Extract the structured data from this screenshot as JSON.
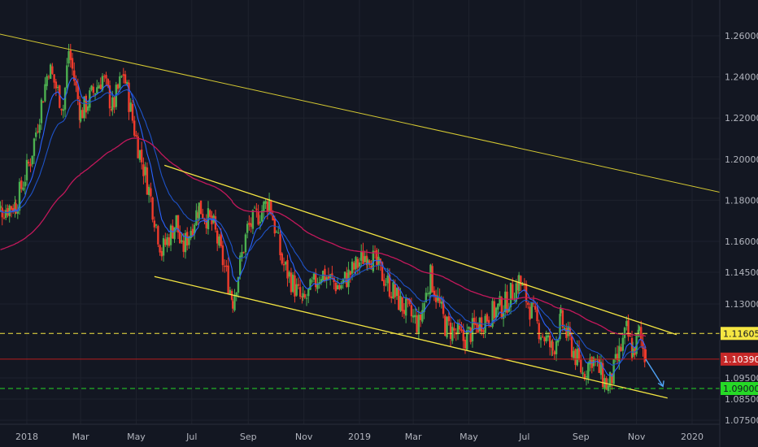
{
  "colors": {
    "background": "#131722",
    "grid": "#1e222d",
    "up": "#4caf50",
    "down": "#ef3b2c",
    "ema_fast": "#2962ff",
    "ema_mid": "#1e53c8",
    "ema_slow": "#c2185b",
    "trendline": "#d4c832",
    "resistance": "#f5e642",
    "support": "#26d926",
    "price": "#b71c1c",
    "arrow": "#4fa3f7",
    "axis_text": "#b2b5be"
  },
  "chart_data": {
    "type": "candlestick",
    "symbol_hint": "EUR/USD daily",
    "x_ticks": [
      "2018",
      "Mar",
      "May",
      "Jul",
      "Sep",
      "Nov",
      "2019",
      "Mar",
      "May",
      "Jul",
      "Sep",
      "Nov",
      "2020"
    ],
    "x_tick_dates": [
      "2018-01-01",
      "2018-03-01",
      "2018-05-01",
      "2018-07-01",
      "2018-09-01",
      "2018-11-01",
      "2019-01-01",
      "2019-03-01",
      "2019-05-01",
      "2019-07-01",
      "2019-09-01",
      "2019-11-01",
      "2020-01-01"
    ],
    "y_ticks": [
      "1.26000",
      "1.24000",
      "1.22000",
      "1.20000",
      "1.18000",
      "1.16000",
      "1.14500",
      "1.13000",
      "1.09500",
      "1.08500",
      "1.07500"
    ],
    "y_tick_values": [
      1.26,
      1.24,
      1.22,
      1.2,
      1.18,
      1.16,
      1.145,
      1.13,
      1.095,
      1.085,
      1.075
    ],
    "price_path": [
      [
        "2017-11-25",
        1.174
      ],
      [
        "2017-12-20",
        1.178
      ],
      [
        "2018-01-05",
        1.2
      ],
      [
        "2018-01-25",
        1.245
      ],
      [
        "2018-02-10",
        1.225
      ],
      [
        "2018-02-16",
        1.253
      ],
      [
        "2018-03-01",
        1.222
      ],
      [
        "2018-03-25",
        1.24
      ],
      [
        "2018-04-05",
        1.225
      ],
      [
        "2018-04-17",
        1.242
      ],
      [
        "2018-05-01",
        1.21
      ],
      [
        "2018-05-15",
        1.185
      ],
      [
        "2018-05-29",
        1.155
      ],
      [
        "2018-06-14",
        1.17
      ],
      [
        "2018-06-20",
        1.155
      ],
      [
        "2018-07-09",
        1.177
      ],
      [
        "2018-07-25",
        1.167
      ],
      [
        "2018-08-15",
        1.132
      ],
      [
        "2018-08-31",
        1.166
      ],
      [
        "2018-09-24",
        1.18
      ],
      [
        "2018-10-08",
        1.15
      ],
      [
        "2018-10-31",
        1.13
      ],
      [
        "2018-11-20",
        1.145
      ],
      [
        "2018-12-10",
        1.138
      ],
      [
        "2019-01-10",
        1.155
      ],
      [
        "2019-02-15",
        1.13
      ],
      [
        "2019-03-07",
        1.12
      ],
      [
        "2019-03-20",
        1.143
      ],
      [
        "2019-04-05",
        1.12
      ],
      [
        "2019-04-25",
        1.113
      ],
      [
        "2019-05-15",
        1.122
      ],
      [
        "2019-06-10",
        1.13
      ],
      [
        "2019-06-25",
        1.141
      ],
      [
        "2019-07-15",
        1.12
      ],
      [
        "2019-08-01",
        1.108
      ],
      [
        "2019-08-10",
        1.122
      ],
      [
        "2019-09-03",
        1.097
      ],
      [
        "2019-09-13",
        1.105
      ],
      [
        "2019-10-01",
        1.09
      ],
      [
        "2019-10-21",
        1.117
      ],
      [
        "2019-10-28",
        1.107
      ],
      [
        "2019-11-04",
        1.116
      ],
      [
        "2019-11-11",
        1.1039
      ]
    ],
    "moving_averages": [
      {
        "period": 20,
        "color": "#2962ff"
      },
      {
        "period": 50,
        "color": "#1e53c8"
      },
      {
        "period": 200,
        "color": "#c2185b"
      }
    ],
    "trendlines": [
      {
        "from": [
          "2017-11-20",
          1.262
        ],
        "to": [
          "2020-02-20",
          1.182
        ],
        "color": "#d4c832"
      },
      {
        "from": [
          "2018-06-01",
          1.197
        ],
        "to": [
          "2019-12-15",
          1.1155
        ],
        "color": "#f5e642"
      },
      {
        "from": [
          "2018-05-21",
          1.143
        ],
        "to": [
          "2019-12-05",
          1.0855
        ],
        "color": "#f5e642"
      }
    ],
    "projection_arrow": {
      "from": [
        "2019-11-11",
        1.1039
      ],
      "to": [
        "2019-11-30",
        1.091
      ]
    },
    "horizontal_levels": [
      {
        "value": 1.11605,
        "label": "1.11605",
        "style": "dashed",
        "color": "#f5e642"
      },
      {
        "value": 1.09,
        "label": "1.09000",
        "style": "dashed",
        "color": "#26d926"
      },
      {
        "value": 1.1039,
        "label": "1.10390",
        "style": "solid",
        "color": "#b71c1c"
      }
    ]
  }
}
